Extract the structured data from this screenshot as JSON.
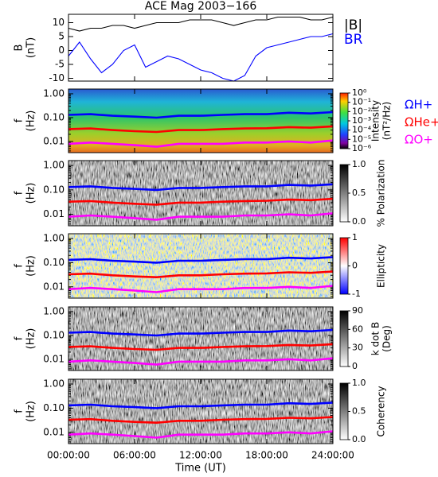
{
  "chart_data": [
    {
      "type": "line",
      "title": "ACE Mag 2003−166",
      "ylabel": [
        "B",
        "(nT)"
      ],
      "x": [
        0,
        1,
        2,
        3,
        4,
        5,
        6,
        7,
        8,
        9,
        10,
        11,
        12,
        13,
        14,
        15,
        16,
        17,
        18,
        19,
        20,
        21,
        22,
        23,
        24
      ],
      "xlim": [
        0,
        24
      ],
      "xticks": [
        0,
        6,
        12,
        18,
        24
      ],
      "ylim": [
        -11,
        13
      ],
      "yticks": [
        10,
        5,
        0,
        -5,
        -10
      ],
      "series": [
        {
          "name": "|B|",
          "color": "#000000",
          "values": [
            8,
            7,
            8,
            8,
            9,
            9,
            8,
            9,
            10,
            10,
            10,
            11,
            11,
            11,
            10,
            9,
            10,
            11,
            11,
            12,
            12,
            12,
            11,
            11,
            12
          ]
        },
        {
          "name": "BR",
          "color": "#0000ff",
          "values": [
            -2,
            3,
            -3,
            -8,
            -5,
            0,
            2,
            -6,
            -4,
            -2,
            -3,
            -5,
            -7,
            -8,
            -10,
            -11,
            -9,
            -2,
            1,
            2,
            3,
            4,
            5,
            5,
            6
          ]
        }
      ]
    },
    {
      "type": "spectrogram",
      "ylabel": [
        "f",
        "(Hz)"
      ],
      "colormap": "rainbow",
      "log": true,
      "clabel": [
        "Intensity",
        "(nT²/Hz)"
      ],
      "clim": [
        1e-06,
        1
      ],
      "clog": true,
      "cticks": [
        {
          "value": 1,
          "label": "10⁰"
        },
        {
          "value": 0.1,
          "label": "10⁻¹"
        },
        {
          "value": 0.01,
          "label": "10⁻²"
        },
        {
          "value": 0.001,
          "label": "10⁻³"
        },
        {
          "value": 0.0001,
          "label": "10⁻⁴"
        },
        {
          "value": 1e-05,
          "label": "10⁻⁵"
        },
        {
          "value": 1e-06,
          "label": "10⁻⁶"
        }
      ],
      "x": [
        0,
        2,
        4,
        6,
        8,
        10,
        12,
        14,
        16,
        18,
        20,
        22,
        24
      ],
      "xlim": [
        0,
        24
      ],
      "xticks": [
        0,
        6,
        12,
        18,
        24
      ],
      "ylim": [
        0.0034,
        1.58
      ],
      "yticks": [
        {
          "value": 1,
          "label": "1.00"
        },
        {
          "value": 0.1,
          "label": "0.10"
        },
        {
          "value": 0.01,
          "label": "0.01"
        }
      ],
      "series": [
        {
          "name": "ΩH+",
          "color": "#0000ff",
          "values": [
            0.13,
            0.14,
            0.12,
            0.11,
            0.1,
            0.12,
            0.12,
            0.13,
            0.14,
            0.14,
            0.16,
            0.15,
            0.17
          ]
        },
        {
          "name": "ΩHe+",
          "color": "#ff0000",
          "values": [
            0.033,
            0.035,
            0.03,
            0.027,
            0.025,
            0.03,
            0.03,
            0.033,
            0.035,
            0.036,
            0.04,
            0.038,
            0.043
          ]
        },
        {
          "name": "ΩO+",
          "color": "#ff00ff",
          "values": [
            0.008,
            0.009,
            0.008,
            0.007,
            0.006,
            0.008,
            0.008,
            0.008,
            0.009,
            0.009,
            0.01,
            0.009,
            0.011
          ]
        }
      ]
    },
    {
      "type": "spectrogram",
      "ylabel": [
        "f",
        "(Hz)"
      ],
      "colormap": "gray",
      "log": true,
      "clabel": [
        "% Polarization"
      ],
      "clim": [
        0,
        1
      ],
      "cticks": [
        {
          "value": 1,
          "label": "1.0"
        },
        {
          "value": 0.5,
          "label": "0.5"
        },
        {
          "value": 0,
          "label": "0.0"
        }
      ],
      "x": [
        0,
        2,
        4,
        6,
        8,
        10,
        12,
        14,
        16,
        18,
        20,
        22,
        24
      ],
      "xlim": [
        0,
        24
      ],
      "xticks": [
        0,
        6,
        12,
        18,
        24
      ],
      "ylim": [
        0.0034,
        1.58
      ],
      "yticks": [
        {
          "value": 1,
          "label": "1.00"
        },
        {
          "value": 0.1,
          "label": "0.10"
        },
        {
          "value": 0.01,
          "label": "0.01"
        }
      ],
      "series": [
        {
          "color": "#0000ff",
          "values": [
            0.13,
            0.14,
            0.12,
            0.11,
            0.1,
            0.12,
            0.12,
            0.13,
            0.14,
            0.14,
            0.16,
            0.15,
            0.17
          ]
        },
        {
          "color": "#ff0000",
          "values": [
            0.033,
            0.035,
            0.03,
            0.027,
            0.025,
            0.03,
            0.03,
            0.033,
            0.035,
            0.036,
            0.04,
            0.038,
            0.043
          ]
        },
        {
          "color": "#ff00ff",
          "values": [
            0.008,
            0.009,
            0.008,
            0.007,
            0.006,
            0.008,
            0.008,
            0.008,
            0.009,
            0.009,
            0.01,
            0.009,
            0.011
          ]
        }
      ]
    },
    {
      "type": "spectrogram",
      "ylabel": [
        "f",
        "(Hz)"
      ],
      "colormap": "bwr",
      "log": true,
      "clabel": [
        "Ellipticity"
      ],
      "clim": [
        -1,
        1
      ],
      "cticks": [
        1,
        0,
        -1
      ],
      "x": [
        0,
        2,
        4,
        6,
        8,
        10,
        12,
        14,
        16,
        18,
        20,
        22,
        24
      ],
      "xlim": [
        0,
        24
      ],
      "xticks": [
        0,
        6,
        12,
        18,
        24
      ],
      "ylim": [
        0.0034,
        1.58
      ],
      "yticks": [
        {
          "value": 1,
          "label": "1.00"
        },
        {
          "value": 0.1,
          "label": "0.10"
        },
        {
          "value": 0.01,
          "label": "0.01"
        }
      ],
      "series": [
        {
          "color": "#0000ff",
          "values": [
            0.13,
            0.14,
            0.12,
            0.11,
            0.1,
            0.12,
            0.12,
            0.13,
            0.14,
            0.14,
            0.16,
            0.15,
            0.17
          ]
        },
        {
          "color": "#ff0000",
          "values": [
            0.033,
            0.035,
            0.03,
            0.027,
            0.025,
            0.03,
            0.03,
            0.033,
            0.035,
            0.036,
            0.04,
            0.038,
            0.043
          ]
        },
        {
          "color": "#ff00ff",
          "values": [
            0.008,
            0.009,
            0.008,
            0.007,
            0.006,
            0.008,
            0.008,
            0.008,
            0.009,
            0.009,
            0.01,
            0.009,
            0.011
          ]
        }
      ]
    },
    {
      "type": "spectrogram",
      "ylabel": [
        "f",
        "(Hz)"
      ],
      "colormap": "gray",
      "log": true,
      "clabel": [
        "k dot B",
        "(Deg)"
      ],
      "clim": [
        0,
        90
      ],
      "cticks": [
        90,
        60,
        30,
        0
      ],
      "x": [
        0,
        2,
        4,
        6,
        8,
        10,
        12,
        14,
        16,
        18,
        20,
        22,
        24
      ],
      "xlim": [
        0,
        24
      ],
      "xticks": [
        0,
        6,
        12,
        18,
        24
      ],
      "ylim": [
        0.0034,
        1.58
      ],
      "yticks": [
        {
          "value": 1,
          "label": "1.00"
        },
        {
          "value": 0.1,
          "label": "0.10"
        },
        {
          "value": 0.01,
          "label": "0.01"
        }
      ],
      "series": [
        {
          "color": "#0000ff",
          "values": [
            0.13,
            0.14,
            0.12,
            0.11,
            0.1,
            0.12,
            0.12,
            0.13,
            0.14,
            0.14,
            0.16,
            0.15,
            0.17
          ]
        },
        {
          "color": "#ff0000",
          "values": [
            0.033,
            0.035,
            0.03,
            0.027,
            0.025,
            0.03,
            0.03,
            0.033,
            0.035,
            0.036,
            0.04,
            0.038,
            0.043
          ]
        },
        {
          "color": "#ff00ff",
          "values": [
            0.008,
            0.009,
            0.008,
            0.007,
            0.006,
            0.008,
            0.008,
            0.008,
            0.009,
            0.009,
            0.01,
            0.009,
            0.011
          ]
        }
      ]
    },
    {
      "type": "spectrogram",
      "ylabel": [
        "f",
        "(Hz)"
      ],
      "colormap": "gray",
      "log": true,
      "clabel": [
        "Coherency"
      ],
      "clim": [
        0,
        1
      ],
      "cticks": [
        {
          "value": 1,
          "label": "1.0"
        },
        {
          "value": 0.5,
          "label": "0.5"
        },
        {
          "value": 0,
          "label": "0.0"
        }
      ],
      "x": [
        0,
        2,
        4,
        6,
        8,
        10,
        12,
        14,
        16,
        18,
        20,
        22,
        24
      ],
      "xlim": [
        0,
        24
      ],
      "xticks": [
        {
          "value": 0,
          "label": "00:00:00"
        },
        {
          "value": 6,
          "label": "06:00:00"
        },
        {
          "value": 12,
          "label": "12:00:00"
        },
        {
          "value": 18,
          "label": "18:00:00"
        },
        {
          "value": 24,
          "label": "24:00:00"
        }
      ],
      "xlabel": "Time (UT)",
      "ylim": [
        0.0034,
        1.58
      ],
      "yticks": [
        {
          "value": 1,
          "label": "1.00"
        },
        {
          "value": 0.1,
          "label": "0.10"
        },
        {
          "value": 0.01,
          "label": "0.01"
        }
      ],
      "series": [
        {
          "color": "#0000ff",
          "values": [
            0.13,
            0.14,
            0.12,
            0.11,
            0.1,
            0.12,
            0.12,
            0.13,
            0.14,
            0.14,
            0.16,
            0.15,
            0.17
          ]
        },
        {
          "color": "#ff0000",
          "values": [
            0.033,
            0.035,
            0.03,
            0.027,
            0.025,
            0.03,
            0.03,
            0.033,
            0.035,
            0.036,
            0.04,
            0.038,
            0.043
          ]
        },
        {
          "color": "#ff00ff",
          "values": [
            0.008,
            0.009,
            0.008,
            0.007,
            0.006,
            0.008,
            0.008,
            0.008,
            0.009,
            0.009,
            0.01,
            0.009,
            0.011
          ]
        }
      ]
    }
  ]
}
